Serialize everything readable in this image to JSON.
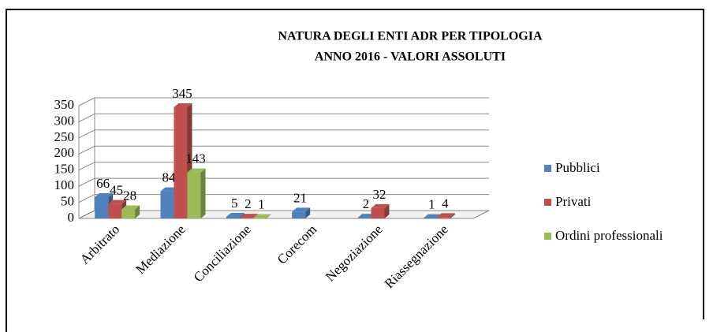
{
  "chart_data": {
    "type": "bar3d",
    "title": [
      "NATURA DEGLI ENTI ADR PER TIPOLOGIA",
      "ANNO 2016 - VALORI ASSOLUTI"
    ],
    "categories": [
      "Arbitrato",
      "Mediazione",
      "Conciliazione",
      "Corecom",
      "Negoziazione",
      "Riassegnazione"
    ],
    "series": [
      {
        "name": "Pubblici",
        "color": "#4f81bd",
        "values": [
          66,
          84,
          5,
          21,
          2,
          1
        ]
      },
      {
        "name": "Privati",
        "color": "#c0504d",
        "values": [
          45,
          345,
          2,
          null,
          32,
          4
        ]
      },
      {
        "name": "Ordini professionali",
        "color": "#9bbb59",
        "values": [
          28,
          143,
          1,
          null,
          null,
          null
        ]
      }
    ],
    "ylim": [
      0,
      350
    ],
    "yticks": [
      0,
      50,
      100,
      150,
      200,
      250,
      300,
      350
    ],
    "grid": true,
    "legend": "right"
  }
}
